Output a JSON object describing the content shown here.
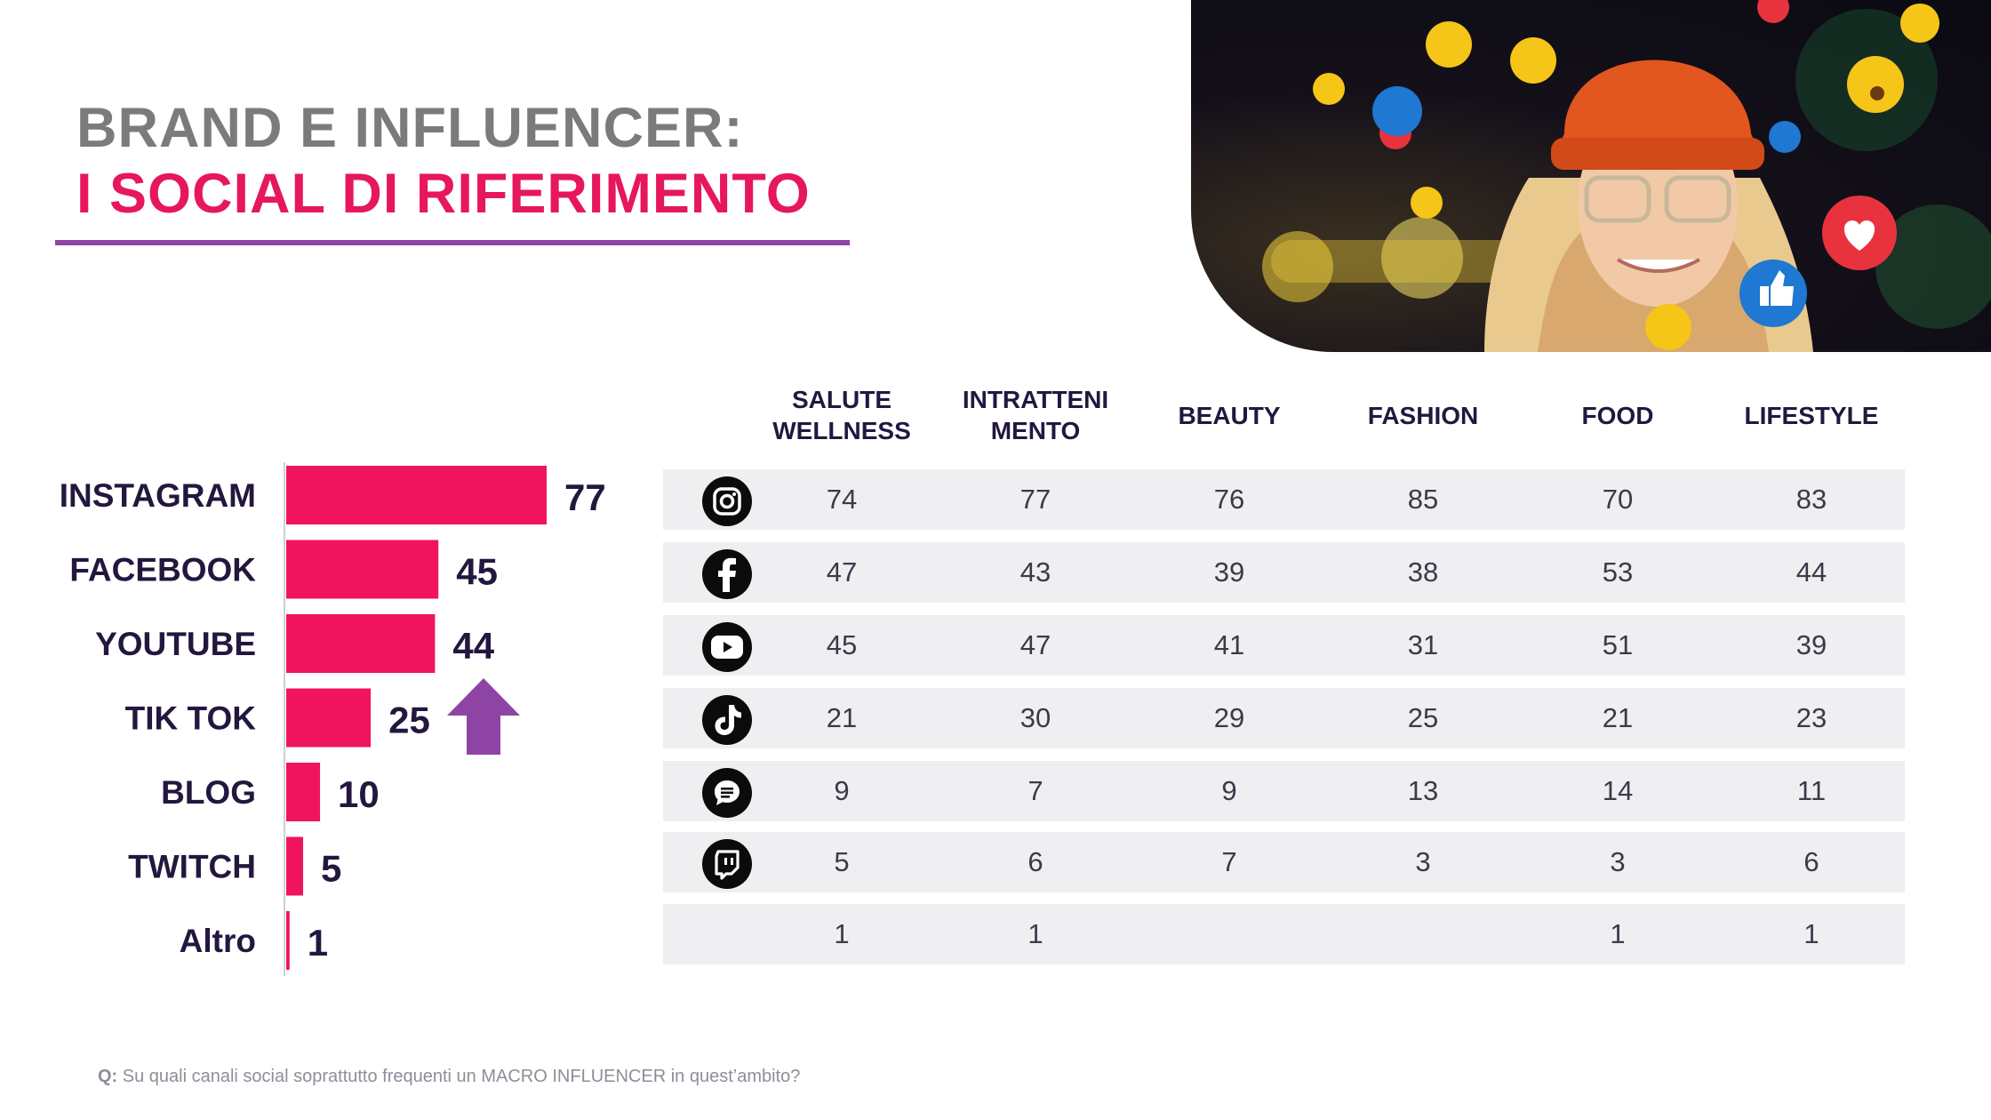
{
  "title": {
    "line1": "BRAND E INFLUENCER:",
    "line2": "I SOCIAL DI RIFERIMENTO"
  },
  "colors": {
    "bar": "#f0145e",
    "title_gray": "#7b7b7d",
    "title_pink": "#e6175c",
    "rule": "#8e44a5",
    "arrow": "#8e44a5",
    "text_dark": "#23173f",
    "row_band": "#efeff1"
  },
  "chart_data": {
    "type": "bar",
    "orientation": "horizontal",
    "categories": [
      "INSTAGRAM",
      "FACEBOOK",
      "YOUTUBE",
      "TIK TOK",
      "BLOG",
      "TWITCH",
      "Altro"
    ],
    "values": [
      77,
      45,
      44,
      25,
      10,
      5,
      1
    ],
    "xlim": [
      0,
      80
    ],
    "trend_arrow": {
      "category": "TIK TOK",
      "direction": "up"
    }
  },
  "table": {
    "columns": [
      {
        "line1": "SALUTE",
        "line2": "WELLNESS"
      },
      {
        "line1": "INTRATTENI",
        "line2": "MENTO"
      },
      {
        "line1": "BEAUTY",
        "line2": ""
      },
      {
        "line1": "FASHION",
        "line2": ""
      },
      {
        "line1": "FOOD",
        "line2": ""
      },
      {
        "line1": "LIFESTYLE",
        "line2": ""
      }
    ],
    "rows": [
      {
        "icon": "instagram-icon",
        "values": [
          "74",
          "77",
          "76",
          "85",
          "70",
          "83"
        ]
      },
      {
        "icon": "facebook-icon",
        "values": [
          "47",
          "43",
          "39",
          "38",
          "53",
          "44"
        ]
      },
      {
        "icon": "youtube-icon",
        "values": [
          "45",
          "47",
          "41",
          "31",
          "51",
          "39"
        ]
      },
      {
        "icon": "tiktok-icon",
        "values": [
          "21",
          "30",
          "29",
          "25",
          "21",
          "23"
        ]
      },
      {
        "icon": "blog-icon",
        "values": [
          "9",
          "7",
          "9",
          "13",
          "14",
          "11"
        ]
      },
      {
        "icon": "twitch-icon",
        "values": [
          "5",
          "6",
          "7",
          "3",
          "3",
          "6"
        ]
      },
      {
        "icon": "",
        "values": [
          "1",
          "1",
          "",
          "",
          "1",
          "1"
        ]
      }
    ]
  },
  "footnote": {
    "prefix": "Q:",
    "text": " Su quali canali social soprattutto frequenti un MACRO INFLUENCER in quest’ambito?"
  },
  "photo": {
    "icon": "influencer-photo"
  }
}
